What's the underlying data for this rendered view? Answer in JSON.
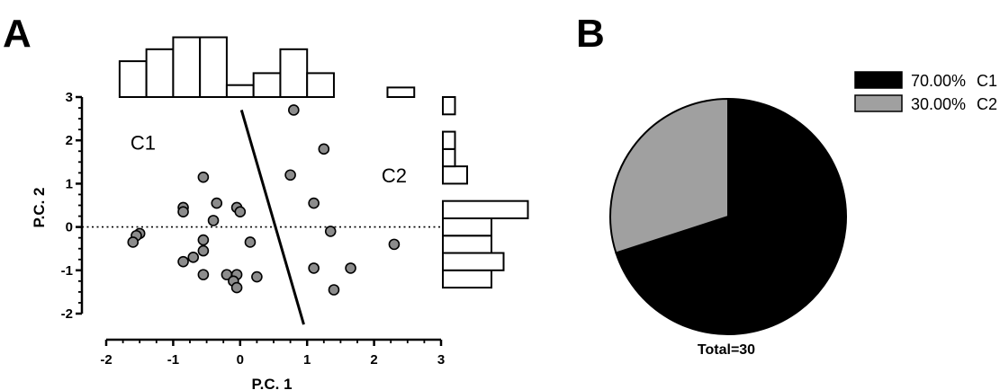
{
  "panels": {
    "a_label": "A",
    "b_label": "B"
  },
  "chart_data": [
    {
      "type": "scatter",
      "panel": "A",
      "xlabel": "P.C. 1",
      "ylabel": "P.C. 2",
      "xlim": [
        -2,
        3
      ],
      "ylim": [
        -2,
        3
      ],
      "x_ticks": [
        -2,
        -1,
        0,
        1,
        2,
        3
      ],
      "y_ticks": [
        -2,
        -1,
        0,
        1,
        2,
        3
      ],
      "reference_line_y": 0,
      "grid": false,
      "points": [
        [
          0.8,
          2.7
        ],
        [
          1.25,
          1.8
        ],
        [
          0.75,
          1.2
        ],
        [
          1.1,
          0.55
        ],
        [
          1.35,
          -0.1
        ],
        [
          2.3,
          -0.4
        ],
        [
          1.1,
          -0.95
        ],
        [
          1.65,
          -0.95
        ],
        [
          1.4,
          -1.45
        ],
        [
          -0.55,
          1.15
        ],
        [
          -0.35,
          0.55
        ],
        [
          -0.85,
          0.45
        ],
        [
          -0.85,
          0.35
        ],
        [
          -0.05,
          0.45
        ],
        [
          0.0,
          0.35
        ],
        [
          -0.4,
          0.15
        ],
        [
          0.15,
          -0.35
        ],
        [
          -0.55,
          -0.3
        ],
        [
          -1.5,
          -0.15
        ],
        [
          -1.55,
          -0.2
        ],
        [
          -1.6,
          -0.35
        ],
        [
          -0.85,
          -0.8
        ],
        [
          -0.7,
          -0.7
        ],
        [
          -0.55,
          -0.55
        ],
        [
          -0.2,
          -1.1
        ],
        [
          -0.05,
          -1.1
        ],
        [
          -0.1,
          -1.25
        ],
        [
          -0.05,
          -1.4
        ],
        [
          0.25,
          -1.15
        ],
        [
          -0.55,
          -1.1
        ]
      ],
      "divider_line": {
        "from": [
          0.02,
          2.7
        ],
        "to": [
          0.95,
          -2.25
        ]
      },
      "cluster_labels": [
        {
          "text": "C1",
          "x": -1.45,
          "y": 1.95
        },
        {
          "text": "C2",
          "x": 2.3,
          "y": 1.2
        }
      ],
      "top_histogram": {
        "bin_edges": [
          -1.8,
          -1.4,
          -1.0,
          -0.6,
          -0.2,
          0.2,
          0.6,
          1.0,
          1.4,
          1.8
        ],
        "counts": [
          3,
          4,
          5,
          5,
          1,
          2,
          4,
          2,
          0
        ],
        "extra_bar": {
          "from": 2.2,
          "to": 2.6,
          "count": 0.8
        }
      },
      "right_histogram": {
        "bin_edges": [
          -1.4,
          -1.0,
          -0.6,
          -0.2,
          0.2,
          0.6,
          1.0,
          1.4,
          1.8,
          2.2,
          2.6,
          3.0
        ],
        "counts": [
          4,
          5,
          4,
          4,
          7,
          0,
          2,
          1,
          1,
          0,
          1
        ]
      }
    },
    {
      "type": "pie",
      "panel": "B",
      "slices": [
        {
          "label": "C1",
          "value": 70.0,
          "display": "70.00%",
          "color": "#000000"
        },
        {
          "label": "C2",
          "value": 30.0,
          "display": "30.00%",
          "color": "#a0a0a0"
        }
      ],
      "total_label": "Total=30",
      "legend_placement": "top-right"
    }
  ]
}
